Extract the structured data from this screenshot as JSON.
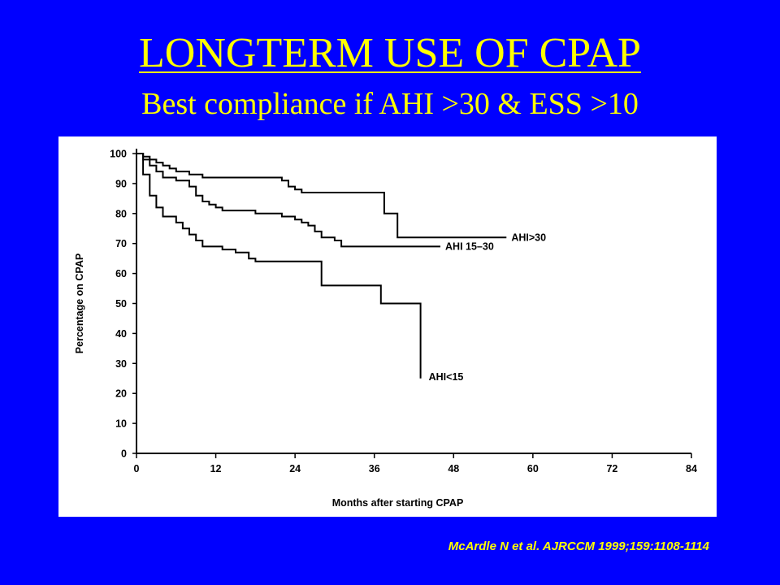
{
  "slide": {
    "title": "LONGTERM USE OF CPAP",
    "subtitle": "Best compliance if AHI >30 & ESS >10",
    "citation": "McArdle N et al.  AJRCCM 1999;159:1108-1114",
    "background_color": "#0000FF",
    "text_color": "#FFFF00"
  },
  "chart_data": {
    "type": "line",
    "title": "",
    "xlabel": "Months after starting CPAP",
    "ylabel": "Percentage on CPAP",
    "xlim": [
      0,
      84
    ],
    "ylim": [
      0,
      100
    ],
    "x_ticks": [
      0,
      12,
      24,
      36,
      48,
      60,
      72,
      84
    ],
    "y_ticks": [
      0,
      10,
      20,
      30,
      40,
      50,
      60,
      70,
      80,
      90,
      100
    ],
    "grid": false,
    "series": [
      {
        "name": "AHI>30",
        "step_points": [
          [
            0,
            100
          ],
          [
            1,
            99
          ],
          [
            2,
            98
          ],
          [
            3,
            97
          ],
          [
            4,
            96
          ],
          [
            5,
            95
          ],
          [
            6,
            94
          ],
          [
            8,
            93
          ],
          [
            10,
            92
          ],
          [
            22,
            91
          ],
          [
            23,
            89
          ],
          [
            24,
            88
          ],
          [
            25,
            87
          ],
          [
            37,
            87
          ],
          [
            37.5,
            80
          ],
          [
            39,
            80
          ],
          [
            39.5,
            72
          ],
          [
            56,
            72
          ]
        ]
      },
      {
        "name": "AHI 15–30",
        "step_points": [
          [
            0,
            100
          ],
          [
            1,
            98
          ],
          [
            2,
            96
          ],
          [
            3,
            94
          ],
          [
            4,
            92
          ],
          [
            6,
            91
          ],
          [
            8,
            89
          ],
          [
            9,
            86
          ],
          [
            10,
            84
          ],
          [
            11,
            83
          ],
          [
            12,
            82
          ],
          [
            13,
            81
          ],
          [
            17,
            81
          ],
          [
            18,
            80
          ],
          [
            22,
            79
          ],
          [
            24,
            78
          ],
          [
            25,
            77
          ],
          [
            26,
            76
          ],
          [
            27,
            74
          ],
          [
            28,
            72
          ],
          [
            30,
            71
          ],
          [
            31,
            69
          ],
          [
            46,
            69
          ]
        ]
      },
      {
        "name": "AHI<15",
        "step_points": [
          [
            0,
            100
          ],
          [
            1,
            93
          ],
          [
            2,
            86
          ],
          [
            3,
            82
          ],
          [
            4,
            79
          ],
          [
            6,
            77
          ],
          [
            7,
            75
          ],
          [
            8,
            73
          ],
          [
            9,
            71
          ],
          [
            10,
            69
          ],
          [
            13,
            68
          ],
          [
            15,
            67
          ],
          [
            17,
            65
          ],
          [
            18,
            64
          ],
          [
            27,
            64
          ],
          [
            28,
            56
          ],
          [
            36,
            56
          ],
          [
            37,
            50
          ],
          [
            43,
            50
          ],
          [
            43,
            25
          ]
        ]
      }
    ]
  }
}
